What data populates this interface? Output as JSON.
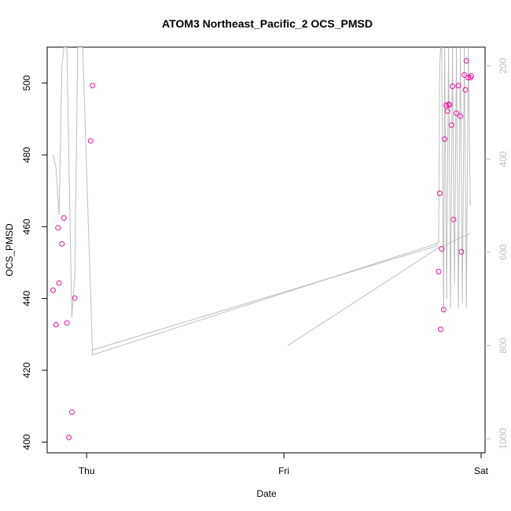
{
  "chart_data": {
    "type": "scatter",
    "title": "ATOM3 Northeast_Pacific_2 OCS_PMSD",
    "xlabel": "Date",
    "ylabel": "OCS_PMSD",
    "x_ticks": [
      "Thu",
      "Fri",
      "Sat"
    ],
    "xlim": [
      -0.2,
      2.02
    ],
    "ylim": [
      397,
      510
    ],
    "y_ticks": [
      400,
      420,
      440,
      460,
      480,
      500
    ],
    "right_axis": {
      "ylim": [
        1030,
        160
      ],
      "ticks": [
        200,
        400,
        600,
        800,
        1000
      ],
      "color": "#bebebe"
    },
    "grid": false,
    "series": [
      {
        "kind": "points",
        "color": "#e6149b",
        "x": [
          -0.17,
          -0.155,
          -0.145,
          -0.14,
          -0.125,
          -0.115,
          -0.1,
          -0.09,
          -0.075,
          -0.06,
          0.02,
          0.03,
          1.785,
          1.79,
          1.795,
          1.8,
          1.81,
          1.815,
          1.823,
          1.83,
          1.835,
          1.84,
          1.85,
          1.855,
          1.86,
          1.875,
          1.885,
          1.895,
          1.9,
          1.915,
          1.92,
          1.925,
          1.935,
          1.945,
          1.95
        ],
        "y": [
          442.3,
          432.7,
          459.7,
          444.3,
          455.2,
          462.4,
          433.2,
          401.3,
          408.3,
          440.1,
          483.9,
          499.3,
          447.5,
          469.3,
          431.4,
          453.8,
          436.9,
          484.4,
          493.8,
          492.2,
          494.1,
          493.9,
          488.3,
          499.1,
          462.0,
          491.6,
          499.3,
          490.8,
          453.0,
          502.3,
          498.1,
          506.2,
          501.5,
          501.5,
          502.0
        ]
      },
      {
        "kind": "line",
        "axis": "right",
        "color": "#bebebe",
        "x": [
          -0.17,
          -0.155,
          -0.14,
          -0.125,
          -0.115,
          -0.1,
          -0.09,
          -0.075,
          -0.06,
          -0.045,
          -0.035,
          -0.02,
          0.03,
          1.785,
          1.79,
          1.795,
          1.8,
          1.81,
          1.815,
          1.825,
          1.835,
          1.845,
          1.855,
          1.865,
          1.875,
          1.885,
          1.895,
          1.905,
          1.915,
          1.925,
          1.935,
          1.945
        ],
        "y": [
          390,
          420,
          520,
          200,
          160,
          160,
          400,
          740,
          650,
          160,
          160,
          160,
          820,
          580,
          200,
          160,
          160,
          730,
          160,
          700,
          160,
          720,
          160,
          670,
          160,
          720,
          160,
          710,
          160,
          720,
          160,
          500
        ]
      },
      {
        "kind": "line",
        "axis": "right",
        "color": "#bebebe",
        "x": [
          0.025,
          1.785
        ],
        "y": [
          810,
          585
        ]
      },
      {
        "kind": "line",
        "axis": "right",
        "color": "#bebebe",
        "x": [
          1.02,
          1.785,
          1.945
        ],
        "y": [
          800,
          590,
          560
        ]
      }
    ]
  }
}
